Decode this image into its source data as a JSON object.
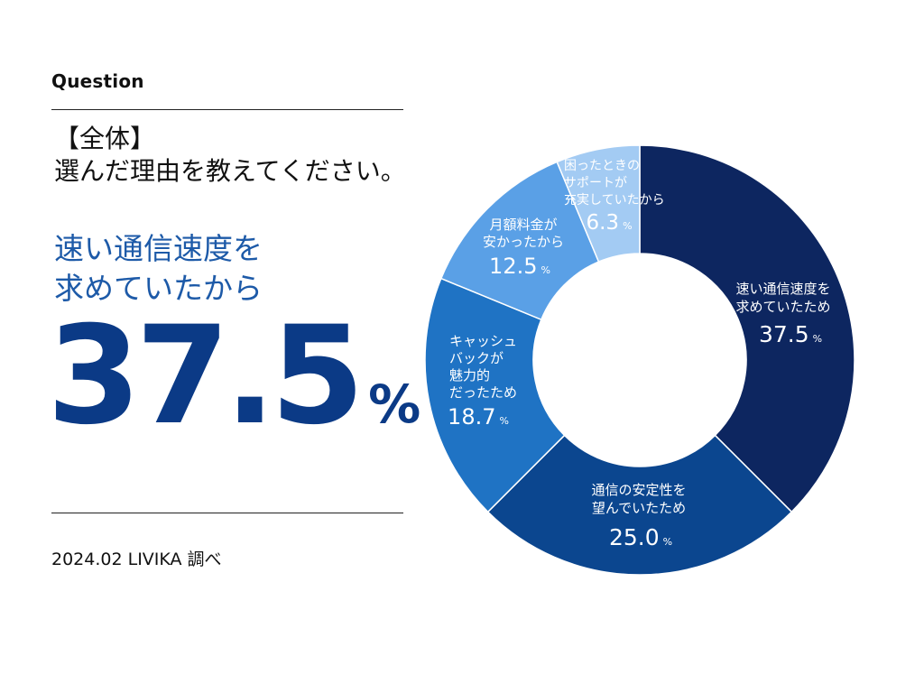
{
  "header": {
    "tag": "Question"
  },
  "question": {
    "line1": "【全体】",
    "line2": "選んだ理由を教えてください。"
  },
  "highlight": {
    "line1": "速い通信速度を",
    "line2": "求めていたから",
    "value": "37.5",
    "unit": "%"
  },
  "source": "2024.02 LIVIKA 調べ",
  "colors": {
    "accent": "#1d5aa8",
    "big_number": "#0b3a86"
  },
  "chart_data": {
    "type": "pie",
    "donut": true,
    "start_angle_deg": 0,
    "direction": "clockwise",
    "slices": [
      {
        "label_lines": [
          "速い通信速度を",
          "求めていたため"
        ],
        "value": 37.5,
        "value_text": "37.5",
        "unit": "%",
        "color": "#0d2660",
        "text_color": "#ffffff"
      },
      {
        "label_lines": [
          "通信の安定性を",
          "望んでいたため"
        ],
        "value": 25.0,
        "value_text": "25.0",
        "unit": "%",
        "color": "#0b468f",
        "text_color": "#ffffff"
      },
      {
        "label_lines": [
          "キャッシュ",
          "バックが",
          "魅力的",
          "だったため"
        ],
        "value": 18.7,
        "value_text": "18.7",
        "unit": "%",
        "color": "#1f73c4",
        "text_color": "#ffffff"
      },
      {
        "label_lines": [
          "月額料金が",
          "安かったから"
        ],
        "value": 12.5,
        "value_text": "12.5",
        "unit": "%",
        "color": "#5aa0e6",
        "text_color": "#ffffff"
      },
      {
        "label_lines": [
          "困ったときの",
          "サポートが",
          "充実していたから"
        ],
        "value": 6.3,
        "value_text": "6.3",
        "unit": "%",
        "color": "#a3cbf3",
        "text_color": "#ffffff"
      }
    ]
  }
}
